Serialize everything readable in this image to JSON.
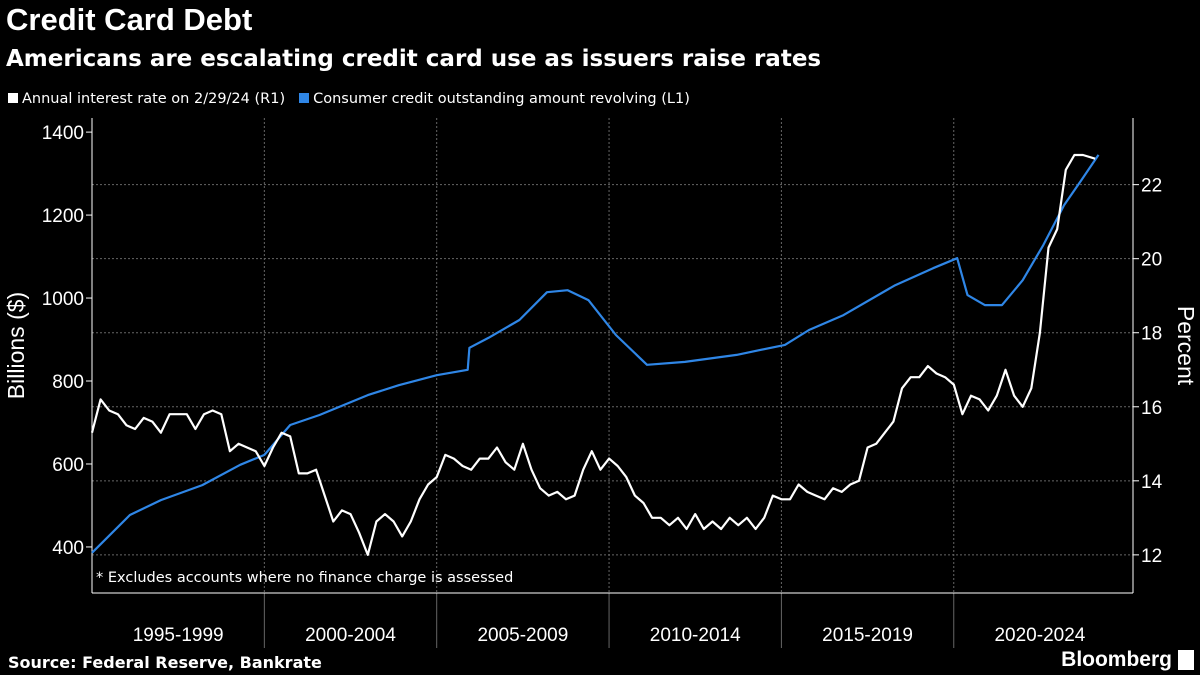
{
  "title": "Credit Card Debt",
  "subtitle": "Americans are escalating credit card use as issuers raise rates",
  "source": "Source: Federal Reserve, Bankrate",
  "logo": "Bloomberg",
  "chart_data": {
    "type": "line",
    "title": "Credit Card Debt",
    "ylabel_left": "Billions ($)",
    "ylabel_right": "Percent",
    "footnote": "* Excludes accounts where no finance charge is assessed",
    "xlim": [
      1995,
      2025.2
    ],
    "ylim_left": [
      289,
      1434
    ],
    "ylim_right": [
      10.97,
      23.8
    ],
    "left_ticks": [
      "400",
      "600",
      "800",
      "1000",
      "1200",
      "1400"
    ],
    "right_ticks": [
      "12",
      "14",
      "16",
      "18",
      "20",
      "22"
    ],
    "x_categories": [
      "1995-1999",
      "2000-2004",
      "2005-2009",
      "2010-2014",
      "2015-2019",
      "2020-2024"
    ],
    "grid": true,
    "legend_position": "top-left",
    "colors": {
      "rate": "#ffffff",
      "credit": "#2f86e6"
    },
    "series": [
      {
        "name": "Annual interest rate on 2/29/24 (R1)",
        "axis": "right",
        "x": [
          1995,
          1995.25,
          1995.5,
          1995.75,
          1996,
          1996.25,
          1996.5,
          1996.75,
          1997,
          1997.25,
          1997.5,
          1997.75,
          1998,
          1998.25,
          1998.5,
          1998.75,
          1999,
          1999.25,
          1999.5,
          1999.75,
          2000,
          2000.25,
          2000.5,
          2000.75,
          2001,
          2001.25,
          2001.5,
          2001.75,
          2002,
          2002.25,
          2002.5,
          2002.75,
          2003,
          2003.25,
          2003.5,
          2003.75,
          2004,
          2004.25,
          2004.5,
          2004.75,
          2005,
          2005.25,
          2005.5,
          2005.75,
          2006,
          2006.25,
          2006.5,
          2006.75,
          2007,
          2007.25,
          2007.5,
          2007.75,
          2008,
          2008.25,
          2008.5,
          2008.75,
          2009,
          2009.25,
          2009.5,
          2009.75,
          2010,
          2010.25,
          2010.5,
          2010.75,
          2011,
          2011.25,
          2011.5,
          2011.75,
          2012,
          2012.25,
          2012.5,
          2012.75,
          2013,
          2013.25,
          2013.5,
          2013.75,
          2014,
          2014.25,
          2014.5,
          2014.75,
          2015,
          2015.25,
          2015.5,
          2015.75,
          2016,
          2016.25,
          2016.5,
          2016.75,
          2017,
          2017.25,
          2017.5,
          2017.75,
          2018,
          2018.25,
          2018.5,
          2018.75,
          2019,
          2019.25,
          2019.5,
          2019.75,
          2020,
          2020.25,
          2020.5,
          2020.75,
          2021,
          2021.25,
          2021.5,
          2021.75,
          2022,
          2022.25,
          2022.5,
          2022.75,
          2023,
          2023.25,
          2023.5,
          2023.75,
          2024.1
        ],
        "values": [
          15.3,
          16.2,
          15.9,
          15.8,
          15.5,
          15.4,
          15.7,
          15.6,
          15.3,
          15.8,
          15.8,
          15.8,
          15.4,
          15.8,
          15.9,
          15.8,
          14.8,
          15.0,
          14.9,
          14.8,
          14.4,
          14.9,
          15.3,
          15.2,
          14.2,
          14.2,
          14.3,
          13.6,
          12.9,
          13.2,
          13.1,
          12.6,
          12.0,
          12.9,
          13.1,
          12.9,
          12.5,
          12.9,
          13.5,
          13.9,
          14.1,
          14.7,
          14.6,
          14.4,
          14.3,
          14.6,
          14.6,
          14.9,
          14.5,
          14.3,
          15.0,
          14.3,
          13.8,
          13.6,
          13.7,
          13.5,
          13.6,
          14.3,
          14.8,
          14.3,
          14.6,
          14.4,
          14.1,
          13.6,
          13.4,
          13.0,
          13.0,
          12.8,
          13.0,
          12.7,
          13.1,
          12.7,
          12.9,
          12.7,
          13.0,
          12.8,
          13.0,
          12.7,
          13.0,
          13.6,
          13.5,
          13.5,
          13.9,
          13.7,
          13.6,
          13.5,
          13.8,
          13.7,
          13.9,
          14.0,
          14.9,
          15.0,
          15.3,
          15.6,
          16.5,
          16.8,
          16.8,
          17.1,
          16.9,
          16.8,
          16.6,
          15.8,
          16.3,
          16.2,
          15.9,
          16.3,
          17.0,
          16.3,
          16.0,
          16.5,
          18.0,
          20.3,
          20.8,
          22.4,
          22.8,
          22.8,
          22.7
        ]
      },
      {
        "name": "Consumer credit outstanding amount revolving (L1)",
        "axis": "left",
        "x": [
          1995,
          1996.1,
          1997,
          1998.2,
          1999.3,
          2000,
          2000.75,
          2001.6,
          2003,
          2003.9,
          2005,
          2005.9,
          2005.95,
          2006.5,
          2007.4,
          2008.2,
          2008.8,
          2009.4,
          2010.2,
          2011.1,
          2012.2,
          2013.7,
          2015.1,
          2015.8,
          2016.8,
          2018.3,
          2019.4,
          2020.1,
          2020.4,
          2020.9,
          2021.4,
          2022,
          2022.6,
          2023.2,
          2023.7,
          2024.2
        ],
        "values": [
          386,
          477,
          513,
          549,
          598,
          622,
          694,
          718,
          766,
          790,
          814,
          827,
          880,
          904,
          947,
          1014,
          1019,
          995,
          911,
          839,
          846,
          863,
          887,
          923,
          959,
          1031,
          1072,
          1096,
          1007,
          983,
          983,
          1043,
          1128,
          1224,
          1284,
          1345
        ]
      }
    ]
  }
}
